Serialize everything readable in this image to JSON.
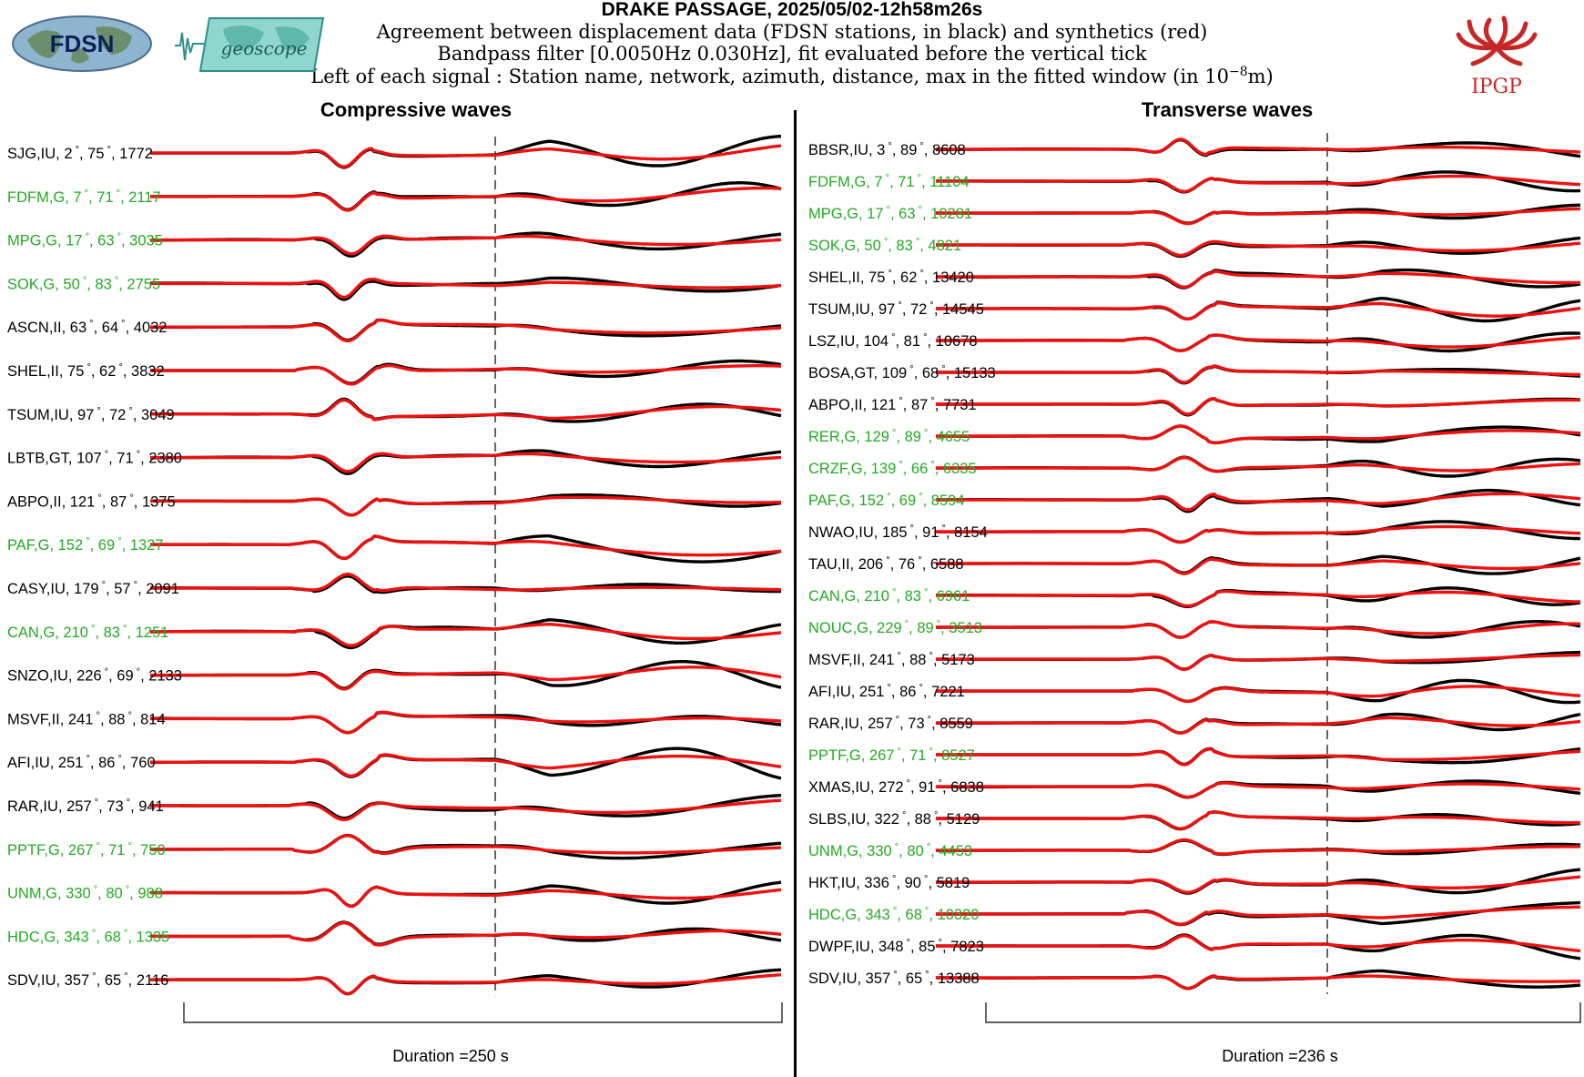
{
  "header": {
    "title": "DRAKE PASSAGE, 2025/05/02-12h58m26s",
    "subtitle_1": "Agreement between displacement data (FDSN stations, in black) and synthetics (red)",
    "subtitle_2": "Bandpass filter [0.0050Hz 0.030Hz], fit evaluated before the vertical tick",
    "subtitle_3_prefix": "Left of each signal : Station name, network, azimuth, distance, max in the fitted window (in 10",
    "subtitle_3_exp": "−8",
    "subtitle_3_suffix": "m)"
  },
  "logos": {
    "fdsn": "FDSN",
    "geoscope": "geoscope",
    "ipgp": "IPGP"
  },
  "colors": {
    "data": "#000000",
    "synthetic": "#ee1111",
    "geoscope_label": "#22aa22",
    "other_label": "#000000"
  },
  "chart_data": [
    {
      "type": "line",
      "title": "Compressive waves",
      "duration_label": "Duration =250 s",
      "series_legend": {
        "data": "displacement data (black)",
        "synthetic": "synthetics (red)"
      },
      "stations": [
        {
          "name": "SJG",
          "network": "IU",
          "azimuth": 2,
          "distance": 75,
          "max": 1772,
          "geoscope": false
        },
        {
          "name": "FDFM",
          "network": "G",
          "azimuth": 7,
          "distance": 71,
          "max": 2117,
          "geoscope": true
        },
        {
          "name": "MPG",
          "network": "G",
          "azimuth": 17,
          "distance": 63,
          "max": 3035,
          "geoscope": true
        },
        {
          "name": "SOK",
          "network": "G",
          "azimuth": 50,
          "distance": 83,
          "max": 2755,
          "geoscope": true
        },
        {
          "name": "ASCN",
          "network": "II",
          "azimuth": 63,
          "distance": 64,
          "max": 4032,
          "geoscope": false
        },
        {
          "name": "SHEL",
          "network": "II",
          "azimuth": 75,
          "distance": 62,
          "max": 3832,
          "geoscope": false
        },
        {
          "name": "TSUM",
          "network": "IU",
          "azimuth": 97,
          "distance": 72,
          "max": 3049,
          "geoscope": false
        },
        {
          "name": "LBTB",
          "network": "GT",
          "azimuth": 107,
          "distance": 71,
          "max": 2380,
          "geoscope": false
        },
        {
          "name": "ABPO",
          "network": "II",
          "azimuth": 121,
          "distance": 87,
          "max": 1375,
          "geoscope": false
        },
        {
          "name": "PAF",
          "network": "G",
          "azimuth": 152,
          "distance": 69,
          "max": 1327,
          "geoscope": true
        },
        {
          "name": "CASY",
          "network": "IU",
          "azimuth": 179,
          "distance": 57,
          "max": 2091,
          "geoscope": false
        },
        {
          "name": "CAN",
          "network": "G",
          "azimuth": 210,
          "distance": 83,
          "max": 1251,
          "geoscope": true
        },
        {
          "name": "SNZO",
          "network": "IU",
          "azimuth": 226,
          "distance": 69,
          "max": 2133,
          "geoscope": false
        },
        {
          "name": "MSVF",
          "network": "II",
          "azimuth": 241,
          "distance": 88,
          "max": 814,
          "geoscope": false
        },
        {
          "name": "AFI",
          "network": "IU",
          "azimuth": 251,
          "distance": 86,
          "max": 760,
          "geoscope": false
        },
        {
          "name": "RAR",
          "network": "IU",
          "azimuth": 257,
          "distance": 73,
          "max": 941,
          "geoscope": false
        },
        {
          "name": "PPTF",
          "network": "G",
          "azimuth": 267,
          "distance": 71,
          "max": 750,
          "geoscope": true
        },
        {
          "name": "UNM",
          "network": "G",
          "azimuth": 330,
          "distance": 80,
          "max": 988,
          "geoscope": true
        },
        {
          "name": "HDC",
          "network": "G",
          "azimuth": 343,
          "distance": 68,
          "max": 1335,
          "geoscope": true
        },
        {
          "name": "SDV",
          "network": "IU",
          "azimuth": 357,
          "distance": 65,
          "max": 2116,
          "geoscope": false
        }
      ]
    },
    {
      "type": "line",
      "title": "Transverse waves",
      "duration_label": "Duration =236 s",
      "series_legend": {
        "data": "displacement data (black)",
        "synthetic": "synthetics (red)"
      },
      "stations": [
        {
          "name": "BBSR",
          "network": "IU",
          "azimuth": 3,
          "distance": 89,
          "max": 8608,
          "geoscope": false
        },
        {
          "name": "FDFM",
          "network": "G",
          "azimuth": 7,
          "distance": 71,
          "max": 11104,
          "geoscope": true
        },
        {
          "name": "MPG",
          "network": "G",
          "azimuth": 17,
          "distance": 63,
          "max": 10281,
          "geoscope": true
        },
        {
          "name": "SOK",
          "network": "G",
          "azimuth": 50,
          "distance": 83,
          "max": 4821,
          "geoscope": true
        },
        {
          "name": "SHEL",
          "network": "II",
          "azimuth": 75,
          "distance": 62,
          "max": 13420,
          "geoscope": false
        },
        {
          "name": "TSUM",
          "network": "IU",
          "azimuth": 97,
          "distance": 72,
          "max": 14545,
          "geoscope": false
        },
        {
          "name": "LSZ",
          "network": "IU",
          "azimuth": 104,
          "distance": 81,
          "max": 10678,
          "geoscope": false
        },
        {
          "name": "BOSA",
          "network": "GT",
          "azimuth": 109,
          "distance": 68,
          "max": 15133,
          "geoscope": false
        },
        {
          "name": "ABPO",
          "network": "II",
          "azimuth": 121,
          "distance": 87,
          "max": 7731,
          "geoscope": false
        },
        {
          "name": "RER",
          "network": "G",
          "azimuth": 129,
          "distance": 89,
          "max": 4655,
          "geoscope": true
        },
        {
          "name": "CRZF",
          "network": "G",
          "azimuth": 139,
          "distance": 66,
          "max": 6335,
          "geoscope": true
        },
        {
          "name": "PAF",
          "network": "G",
          "azimuth": 152,
          "distance": 69,
          "max": 8594,
          "geoscope": true
        },
        {
          "name": "NWAO",
          "network": "IU",
          "azimuth": 185,
          "distance": 91,
          "max": 8154,
          "geoscope": false
        },
        {
          "name": "TAU",
          "network": "II",
          "azimuth": 206,
          "distance": 76,
          "max": 6588,
          "geoscope": false
        },
        {
          "name": "CAN",
          "network": "G",
          "azimuth": 210,
          "distance": 83,
          "max": 6961,
          "geoscope": true
        },
        {
          "name": "NOUC",
          "network": "G",
          "azimuth": 229,
          "distance": 89,
          "max": 3513,
          "geoscope": true
        },
        {
          "name": "MSVF",
          "network": "II",
          "azimuth": 241,
          "distance": 88,
          "max": 5173,
          "geoscope": false
        },
        {
          "name": "AFI",
          "network": "IU",
          "azimuth": 251,
          "distance": 86,
          "max": 7221,
          "geoscope": false
        },
        {
          "name": "RAR",
          "network": "IU",
          "azimuth": 257,
          "distance": 73,
          "max": 8559,
          "geoscope": false
        },
        {
          "name": "PPTF",
          "network": "G",
          "azimuth": 267,
          "distance": 71,
          "max": 8527,
          "geoscope": true
        },
        {
          "name": "XMAS",
          "network": "IU",
          "azimuth": 272,
          "distance": 91,
          "max": 6838,
          "geoscope": false
        },
        {
          "name": "SLBS",
          "network": "IU",
          "azimuth": 322,
          "distance": 88,
          "max": 5129,
          "geoscope": false
        },
        {
          "name": "UNM",
          "network": "G",
          "azimuth": 330,
          "distance": 80,
          "max": 4453,
          "geoscope": true
        },
        {
          "name": "HKT",
          "network": "IU",
          "azimuth": 336,
          "distance": 90,
          "max": 5819,
          "geoscope": false
        },
        {
          "name": "HDC",
          "network": "G",
          "azimuth": 343,
          "distance": 68,
          "max": 10320,
          "geoscope": true
        },
        {
          "name": "DWPF",
          "network": "IU",
          "azimuth": 348,
          "distance": 85,
          "max": 7823,
          "geoscope": false
        },
        {
          "name": "SDV",
          "network": "IU",
          "azimuth": 357,
          "distance": 65,
          "max": 13388,
          "geoscope": false
        }
      ]
    }
  ]
}
